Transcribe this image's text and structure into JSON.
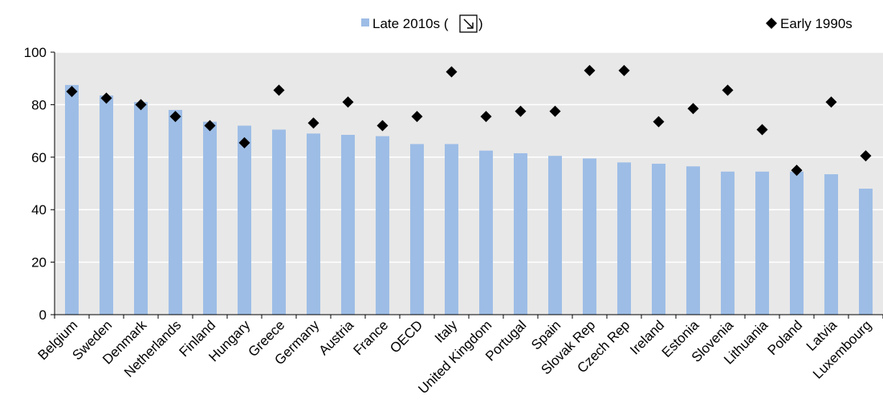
{
  "chart_data": {
    "type": "bar",
    "title": "",
    "xlabel": "",
    "ylabel": "",
    "ylim": [
      0,
      100
    ],
    "yticks": [
      0,
      20,
      40,
      60,
      80,
      100
    ],
    "grid": true,
    "legend": "top",
    "categories": [
      "Belgium",
      "Sweden",
      "Denmark",
      "Netherlands",
      "Finland",
      "Hungary",
      "Greece",
      "Germany",
      "Austria",
      "France",
      "OECD",
      "Italy",
      "United Kingdom",
      "Portugal",
      "Spain",
      "Slovak Rep",
      "Czech Rep",
      "Ireland",
      "Estonia",
      "Slovenia",
      "Lithuania",
      "Poland",
      "Latvia",
      "Luxembourg"
    ],
    "series": [
      {
        "name": "Late 2010s",
        "legend_label": "Late 2010s (",
        "legend_icon": "arrow-down-right-icon",
        "legend_suffix": ")",
        "mark": "bar",
        "color": "#9dbde6",
        "values": [
          87.5,
          83.5,
          81,
          78,
          73.5,
          72,
          70.5,
          69,
          68.5,
          68,
          65,
          65,
          62.5,
          61.5,
          60.5,
          59.5,
          58,
          57.5,
          56.5,
          54.5,
          54.5,
          54.5,
          53.5,
          48
        ]
      },
      {
        "name": "Early 1990s",
        "legend_label": "Early 1990s",
        "mark": "diamond",
        "color": "#000000",
        "values": [
          85,
          82.5,
          80,
          75.5,
          72,
          65.5,
          85.5,
          73,
          81,
          72,
          75.5,
          92.5,
          75.5,
          77.5,
          77.5,
          93,
          93,
          73.5,
          78.5,
          85.5,
          70.5,
          55,
          81,
          60.5
        ]
      }
    ]
  }
}
